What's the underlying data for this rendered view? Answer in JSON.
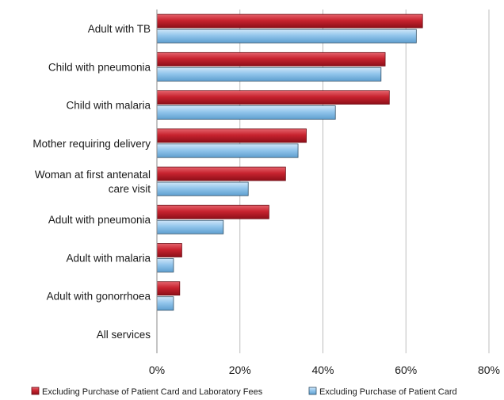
{
  "chart_data": {
    "type": "bar",
    "orientation": "horizontal",
    "categories": [
      "Adult with TB",
      "Child with pneumonia",
      "Child with malaria",
      "Mother requiring delivery",
      "Woman at first antenatal care visit",
      "Adult with pneumonia",
      "Adult with malaria",
      "Adult with gonorrhoea",
      "All services"
    ],
    "category_lines": [
      [
        "Adult with TB"
      ],
      [
        "Child with pneumonia"
      ],
      [
        "Child with malaria"
      ],
      [
        "Mother requiring delivery"
      ],
      [
        "Woman at first antenatal",
        "care visit"
      ],
      [
        "Adult with pneumonia"
      ],
      [
        "Adult with malaria"
      ],
      [
        "Adult with gonorrhoea"
      ],
      [
        "All services"
      ]
    ],
    "series": [
      {
        "name": "Excluding Purchase of Patient Card and Laboratory Fees",
        "color": "#c0202e",
        "values": [
          64,
          55,
          56,
          36,
          31,
          27,
          6,
          5.5,
          0
        ]
      },
      {
        "name": "Excluding Purchase of Patient Card",
        "color": "#8fc3ea",
        "values": [
          62.5,
          54,
          43,
          34,
          22,
          16,
          4,
          4,
          0
        ]
      }
    ],
    "xlim": [
      0,
      80
    ],
    "x_ticks": [
      "0%",
      "20%",
      "40%",
      "60%",
      "80%"
    ],
    "x_tick_values": [
      0,
      20,
      40,
      60,
      80
    ],
    "grid": true,
    "legend_position": "bottom",
    "title": "",
    "xlabel": "",
    "ylabel": ""
  }
}
